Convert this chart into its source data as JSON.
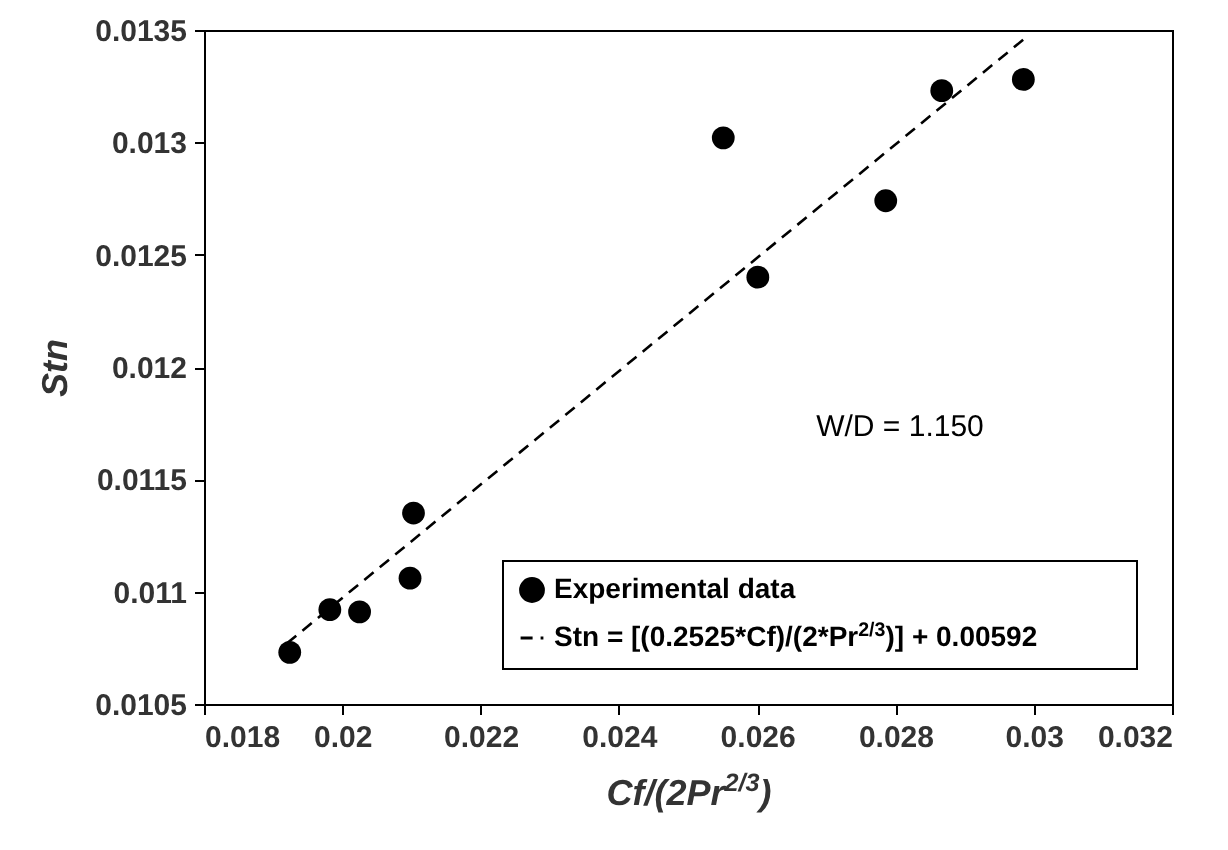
{
  "chart_data": {
    "type": "scatter",
    "xlabel": "Cf/(2Pr$^{2/3}$)",
    "ylabel": "Stn",
    "xlim": [
      0.018,
      0.032
    ],
    "xticks": [
      0.018,
      0.02,
      0.022,
      0.024,
      0.026,
      0.028,
      0.03,
      0.032
    ],
    "ylim": [
      0.0105,
      0.0135
    ],
    "yticks": [
      0.0105,
      0.011,
      0.0115,
      0.012,
      0.0125,
      0.013,
      0.0135
    ],
    "grid": false,
    "legend": "bottom right",
    "annotations": [
      "W/D = 1.150"
    ],
    "series": [
      {
        "name": "Experimental data",
        "marker": "circle",
        "color": "#000000",
        "x": [
          0.01924,
          0.01982,
          0.02025,
          0.02098,
          0.02103,
          0.02551,
          0.02601,
          0.02786,
          0.02867,
          0.02985
        ],
        "values": [
          0.01073,
          0.01092,
          0.01091,
          0.01106,
          0.01135,
          0.01302,
          0.0124,
          0.01274,
          0.01323,
          0.01328
        ]
      },
      {
        "name": "Stn = [(0.2525*Cf)/(2*Pr$^{2/3}$)] + 0.00592",
        "type": "line",
        "line_style": "dashed",
        "color": "#000000",
        "x": [
          0.0192,
          0.0299
        ],
        "values": [
          0.01077,
          0.01347
        ]
      }
    ]
  }
}
